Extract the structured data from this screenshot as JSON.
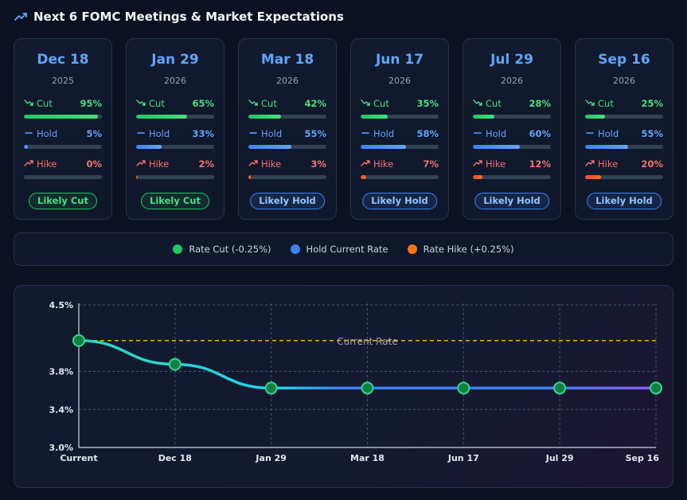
{
  "header": {
    "title": "Next 6 FOMC Meetings & Market Expectations",
    "icon": "trending-up-icon"
  },
  "meetings": [
    {
      "date": "Dec 18",
      "year": "2025",
      "cut": 95,
      "hold": 5,
      "hike": 0,
      "cut_label": "95%",
      "hold_label": "5%",
      "hike_label": "0%",
      "outcome": "Likely Cut"
    },
    {
      "date": "Jan 29",
      "year": "2026",
      "cut": 65,
      "hold": 33,
      "hike": 2,
      "cut_label": "65%",
      "hold_label": "33%",
      "hike_label": "2%",
      "outcome": "Likely Cut"
    },
    {
      "date": "Mar 18",
      "year": "2026",
      "cut": 42,
      "hold": 55,
      "hike": 3,
      "cut_label": "42%",
      "hold_label": "55%",
      "hike_label": "3%",
      "outcome": "Likely Hold"
    },
    {
      "date": "Jun 17",
      "year": "2026",
      "cut": 35,
      "hold": 58,
      "hike": 7,
      "cut_label": "35%",
      "hold_label": "58%",
      "hike_label": "7%",
      "outcome": "Likely Hold"
    },
    {
      "date": "Jul 29",
      "year": "2026",
      "cut": 28,
      "hold": 60,
      "hike": 12,
      "cut_label": "28%",
      "hold_label": "60%",
      "hike_label": "12%",
      "outcome": "Likely Hold"
    },
    {
      "date": "Sep 16",
      "year": "2026",
      "cut": 25,
      "hold": 55,
      "hike": 20,
      "cut_label": "25%",
      "hold_label": "55%",
      "hike_label": "20%",
      "outcome": "Likely Hold"
    }
  ],
  "labels": {
    "cut": "Cut",
    "hold": "Hold",
    "hike": "Hike"
  },
  "legend": [
    {
      "label": "Rate Cut (-0.25%)",
      "color": "#22c55e"
    },
    {
      "label": "Hold Current Rate",
      "color": "#3b82f6"
    },
    {
      "label": "Rate Hike (+0.25%)",
      "color": "#f97316"
    }
  ],
  "colors": {
    "cut": "#4ade80",
    "hold": "#60a5fa",
    "hike": "#f87171",
    "accent": "#60a5fa",
    "reference": "#eab308"
  },
  "chart_data": {
    "type": "line",
    "x": [
      "Current",
      "Dec 18",
      "Jan 29",
      "Mar 18",
      "Jun 17",
      "Jul 29",
      "Sep 16"
    ],
    "series": [
      {
        "values": [
          4.125,
          3.875,
          3.625,
          3.625,
          3.625,
          3.625,
          3.625
        ]
      }
    ],
    "reference_line": {
      "label": "Current Rate",
      "value": 4.125
    },
    "y_ticks": [
      "4.5%",
      "3.8%",
      "3.4%",
      "3.0%"
    ],
    "ylim": [
      3.0,
      4.5
    ],
    "grid": true
  }
}
